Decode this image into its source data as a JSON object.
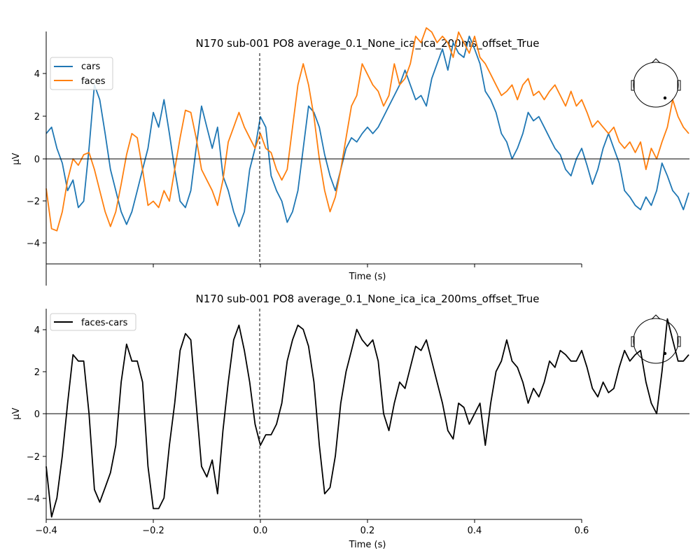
{
  "chart_data": [
    {
      "type": "line",
      "title": "N170 sub-001 PO8 average_0.1_None_ica_ica_200ms_offset_True",
      "xlabel": "Time (s)",
      "ylabel": "µV",
      "xlim": [
        -0.4,
        0.8
      ],
      "ylim": [
        -5,
        6
      ],
      "yticks": [
        "−4",
        "−2",
        "0",
        "2",
        "4"
      ],
      "grid": false,
      "legend": "top-left",
      "event_line_x": 0.0,
      "colors": {
        "cars": "#1f77b4",
        "faces": "#ff7f0e"
      },
      "series": [
        {
          "name": "cars",
          "color": "#1f77b4",
          "x": [
            -0.4,
            -0.39,
            -0.38,
            -0.37,
            -0.36,
            -0.35,
            -0.34,
            -0.33,
            -0.32,
            -0.31,
            -0.3,
            -0.29,
            -0.28,
            -0.27,
            -0.26,
            -0.25,
            -0.24,
            -0.23,
            -0.22,
            -0.21,
            -0.2,
            -0.19,
            -0.18,
            -0.17,
            -0.16,
            -0.15,
            -0.14,
            -0.13,
            -0.12,
            -0.11,
            -0.1,
            -0.09,
            -0.08,
            -0.07,
            -0.06,
            -0.05,
            -0.04,
            -0.03,
            -0.02,
            -0.01,
            0.0,
            0.01,
            0.02,
            0.03,
            0.04,
            0.05,
            0.06,
            0.07,
            0.08,
            0.09,
            0.1,
            0.11,
            0.12,
            0.13,
            0.14,
            0.15,
            0.16,
            0.17,
            0.18,
            0.19,
            0.2,
            0.21,
            0.22,
            0.23,
            0.24,
            0.25,
            0.26,
            0.27,
            0.28,
            0.29,
            0.3,
            0.31,
            0.32,
            0.33,
            0.34,
            0.35,
            0.36,
            0.37,
            0.38,
            0.39,
            0.4,
            0.41,
            0.42,
            0.43,
            0.44,
            0.45,
            0.46,
            0.47,
            0.48,
            0.49,
            0.5,
            0.51,
            0.52,
            0.53,
            0.54,
            0.55,
            0.56,
            0.57,
            0.58,
            0.59,
            0.6,
            0.61,
            0.62,
            0.63,
            0.64,
            0.65,
            0.66,
            0.67,
            0.68,
            0.69,
            0.7,
            0.71,
            0.72,
            0.73,
            0.74,
            0.75,
            0.76,
            0.77,
            0.78,
            0.79,
            0.8
          ],
          "y": [
            1.2,
            1.5,
            0.5,
            -0.2,
            -1.5,
            -1.0,
            -2.3,
            -2.0,
            0.5,
            3.5,
            2.8,
            1.2,
            -0.5,
            -1.5,
            -2.5,
            -3.1,
            -2.5,
            -1.5,
            -0.5,
            0.5,
            2.2,
            1.5,
            2.8,
            1.2,
            -0.5,
            -2.0,
            -2.3,
            -1.5,
            0.5,
            2.5,
            1.5,
            0.5,
            1.5,
            -0.8,
            -1.5,
            -2.5,
            -3.2,
            -2.5,
            -0.5,
            0.5,
            2.0,
            1.5,
            -0.8,
            -1.5,
            -2.0,
            -3.0,
            -2.5,
            -1.5,
            0.5,
            2.5,
            2.2,
            1.5,
            0.2,
            -0.8,
            -1.5,
            -0.5,
            0.5,
            1.0,
            0.8,
            1.2,
            1.5,
            1.2,
            1.5,
            2.0,
            2.5,
            3.0,
            3.5,
            4.2,
            3.5,
            2.8,
            3.0,
            2.5,
            3.8,
            4.5,
            5.2,
            4.2,
            5.5,
            5.0,
            4.8,
            5.8,
            5.2,
            4.5,
            3.2,
            2.8,
            2.2,
            1.2,
            0.8,
            0.0,
            0.5,
            1.2,
            2.2,
            1.8,
            2.0,
            1.5,
            1.0,
            0.5,
            0.2,
            -0.5,
            -0.8,
            0.0,
            0.5,
            -0.3,
            -1.2,
            -0.5,
            0.5,
            1.2,
            0.5,
            -0.2,
            -1.5,
            -1.8,
            -2.2,
            -2.4,
            -1.8,
            -2.2,
            -1.5,
            -0.2,
            -0.8,
            -1.5,
            -1.8,
            -2.4,
            -1.6
          ]
        },
        {
          "name": "faces",
          "color": "#ff7f0e",
          "x": [
            -0.4,
            -0.39,
            -0.38,
            -0.37,
            -0.36,
            -0.35,
            -0.34,
            -0.33,
            -0.32,
            -0.31,
            -0.3,
            -0.29,
            -0.28,
            -0.27,
            -0.26,
            -0.25,
            -0.24,
            -0.23,
            -0.22,
            -0.21,
            -0.2,
            -0.19,
            -0.18,
            -0.17,
            -0.16,
            -0.15,
            -0.14,
            -0.13,
            -0.12,
            -0.11,
            -0.1,
            -0.09,
            -0.08,
            -0.07,
            -0.06,
            -0.05,
            -0.04,
            -0.03,
            -0.02,
            -0.01,
            0.0,
            0.01,
            0.02,
            0.03,
            0.04,
            0.05,
            0.06,
            0.07,
            0.08,
            0.09,
            0.1,
            0.11,
            0.12,
            0.13,
            0.14,
            0.15,
            0.16,
            0.17,
            0.18,
            0.19,
            0.2,
            0.21,
            0.22,
            0.23,
            0.24,
            0.25,
            0.26,
            0.27,
            0.28,
            0.29,
            0.3,
            0.31,
            0.32,
            0.33,
            0.34,
            0.35,
            0.36,
            0.37,
            0.38,
            0.39,
            0.4,
            0.41,
            0.42,
            0.43,
            0.44,
            0.45,
            0.46,
            0.47,
            0.48,
            0.49,
            0.5,
            0.51,
            0.52,
            0.53,
            0.54,
            0.55,
            0.56,
            0.57,
            0.58,
            0.59,
            0.6,
            0.61,
            0.62,
            0.63,
            0.64,
            0.65,
            0.66,
            0.67,
            0.68,
            0.69,
            0.7,
            0.71,
            0.72,
            0.73,
            0.74,
            0.75,
            0.76,
            0.77,
            0.78,
            0.79,
            0.8
          ],
          "y": [
            -1.4,
            -3.3,
            -3.4,
            -2.5,
            -1.0,
            0.0,
            -0.3,
            0.2,
            0.3,
            -0.5,
            -1.5,
            -2.5,
            -3.2,
            -2.5,
            -1.2,
            0.2,
            1.2,
            1.0,
            -0.5,
            -2.2,
            -2.0,
            -2.3,
            -1.5,
            -2.0,
            -0.5,
            1.0,
            2.3,
            2.2,
            1.0,
            -0.5,
            -1.0,
            -1.5,
            -2.2,
            -1.0,
            0.8,
            1.5,
            2.2,
            1.5,
            1.0,
            0.5,
            1.2,
            0.5,
            0.3,
            -0.5,
            -1.0,
            -0.5,
            1.5,
            3.5,
            4.5,
            3.5,
            2.0,
            0.0,
            -1.5,
            -2.5,
            -1.8,
            -0.5,
            1.0,
            2.5,
            3.0,
            4.5,
            4.0,
            3.5,
            3.2,
            2.5,
            3.0,
            4.5,
            3.5,
            3.8,
            4.5,
            5.8,
            5.5,
            6.2,
            6.0,
            5.5,
            5.8,
            5.5,
            4.8,
            6.0,
            5.5,
            5.0,
            5.8,
            4.8,
            4.5,
            4.0,
            3.5,
            3.0,
            3.2,
            3.5,
            2.8,
            3.5,
            3.8,
            3.0,
            3.2,
            2.8,
            3.2,
            3.5,
            3.0,
            2.5,
            3.2,
            2.5,
            2.8,
            2.2,
            1.5,
            1.8,
            1.5,
            1.2,
            1.5,
            0.8,
            0.5,
            0.8,
            0.3,
            0.8,
            -0.5,
            0.5,
            0.0,
            0.8,
            1.5,
            2.8,
            2.0,
            1.5,
            1.2
          ]
        }
      ]
    },
    {
      "type": "line",
      "title": "N170 sub-001 PO8 average_0.1_None_ica_ica_200ms_offset_True",
      "xlabel": "Time (s)",
      "ylabel": "µV",
      "xlim": [
        -0.4,
        0.8
      ],
      "ylim": [
        -5,
        5
      ],
      "xticks": [
        "−0.4",
        "−0.2",
        "0.0",
        "0.2",
        "0.4",
        "0.6"
      ],
      "yticks": [
        "−4",
        "−2",
        "0",
        "2",
        "4"
      ],
      "grid": false,
      "legend": "top-left",
      "event_line_x": 0.0,
      "colors": {
        "faces-cars": "#000000"
      },
      "series": [
        {
          "name": "faces-cars",
          "color": "#000000",
          "x": [
            -0.4,
            -0.39,
            -0.38,
            -0.37,
            -0.36,
            -0.35,
            -0.34,
            -0.33,
            -0.32,
            -0.31,
            -0.3,
            -0.29,
            -0.28,
            -0.27,
            -0.26,
            -0.25,
            -0.24,
            -0.23,
            -0.22,
            -0.21,
            -0.2,
            -0.19,
            -0.18,
            -0.17,
            -0.16,
            -0.15,
            -0.14,
            -0.13,
            -0.12,
            -0.11,
            -0.1,
            -0.09,
            -0.08,
            -0.07,
            -0.06,
            -0.05,
            -0.04,
            -0.03,
            -0.02,
            -0.01,
            0.0,
            0.01,
            0.02,
            0.03,
            0.04,
            0.05,
            0.06,
            0.07,
            0.08,
            0.09,
            0.1,
            0.11,
            0.12,
            0.13,
            0.14,
            0.15,
            0.16,
            0.17,
            0.18,
            0.19,
            0.2,
            0.21,
            0.22,
            0.23,
            0.24,
            0.25,
            0.26,
            0.27,
            0.28,
            0.29,
            0.3,
            0.31,
            0.32,
            0.33,
            0.34,
            0.35,
            0.36,
            0.37,
            0.38,
            0.39,
            0.4,
            0.41,
            0.42,
            0.43,
            0.44,
            0.45,
            0.46,
            0.47,
            0.48,
            0.49,
            0.5,
            0.51,
            0.52,
            0.53,
            0.54,
            0.55,
            0.56,
            0.57,
            0.58,
            0.59,
            0.6,
            0.61,
            0.62,
            0.63,
            0.64,
            0.65,
            0.66,
            0.67,
            0.68,
            0.69,
            0.7,
            0.71,
            0.72,
            0.73,
            0.74,
            0.75,
            0.76,
            0.77,
            0.78,
            0.79,
            0.8
          ],
          "y": [
            -2.5,
            -4.9,
            -4.0,
            -2.0,
            0.5,
            2.8,
            2.5,
            2.5,
            0.0,
            -3.6,
            -4.2,
            -3.5,
            -2.8,
            -1.5,
            1.5,
            3.3,
            2.5,
            2.5,
            1.5,
            -2.5,
            -4.5,
            -4.5,
            -4.0,
            -1.5,
            0.5,
            3.0,
            3.8,
            3.5,
            0.5,
            -2.5,
            -3.0,
            -2.2,
            -3.8,
            -0.8,
            1.5,
            3.5,
            4.2,
            3.0,
            1.5,
            -0.5,
            -1.5,
            -1.0,
            -1.0,
            -0.5,
            0.5,
            2.5,
            3.5,
            4.2,
            4.0,
            3.2,
            1.5,
            -1.5,
            -3.8,
            -3.5,
            -2.0,
            0.5,
            2.0,
            3.0,
            4.0,
            3.5,
            3.2,
            3.5,
            2.5,
            0.0,
            -0.8,
            0.5,
            1.5,
            1.2,
            2.2,
            3.2,
            3.0,
            3.5,
            2.5,
            1.5,
            0.5,
            -0.8,
            -1.2,
            0.5,
            0.3,
            -0.5,
            0.0,
            0.5,
            -1.5,
            0.5,
            2.0,
            2.5,
            3.5,
            2.5,
            2.2,
            1.5,
            0.5,
            1.2,
            0.8,
            1.5,
            2.5,
            2.2,
            3.0,
            2.8,
            2.5,
            2.5,
            3.0,
            2.2,
            1.2,
            0.8,
            1.5,
            1.0,
            1.2,
            2.2,
            3.0,
            2.5,
            2.8,
            3.0,
            1.5,
            0.5,
            0.0,
            2.0,
            4.5,
            3.5,
            2.5,
            2.5,
            2.8
          ]
        }
      ]
    }
  ]
}
